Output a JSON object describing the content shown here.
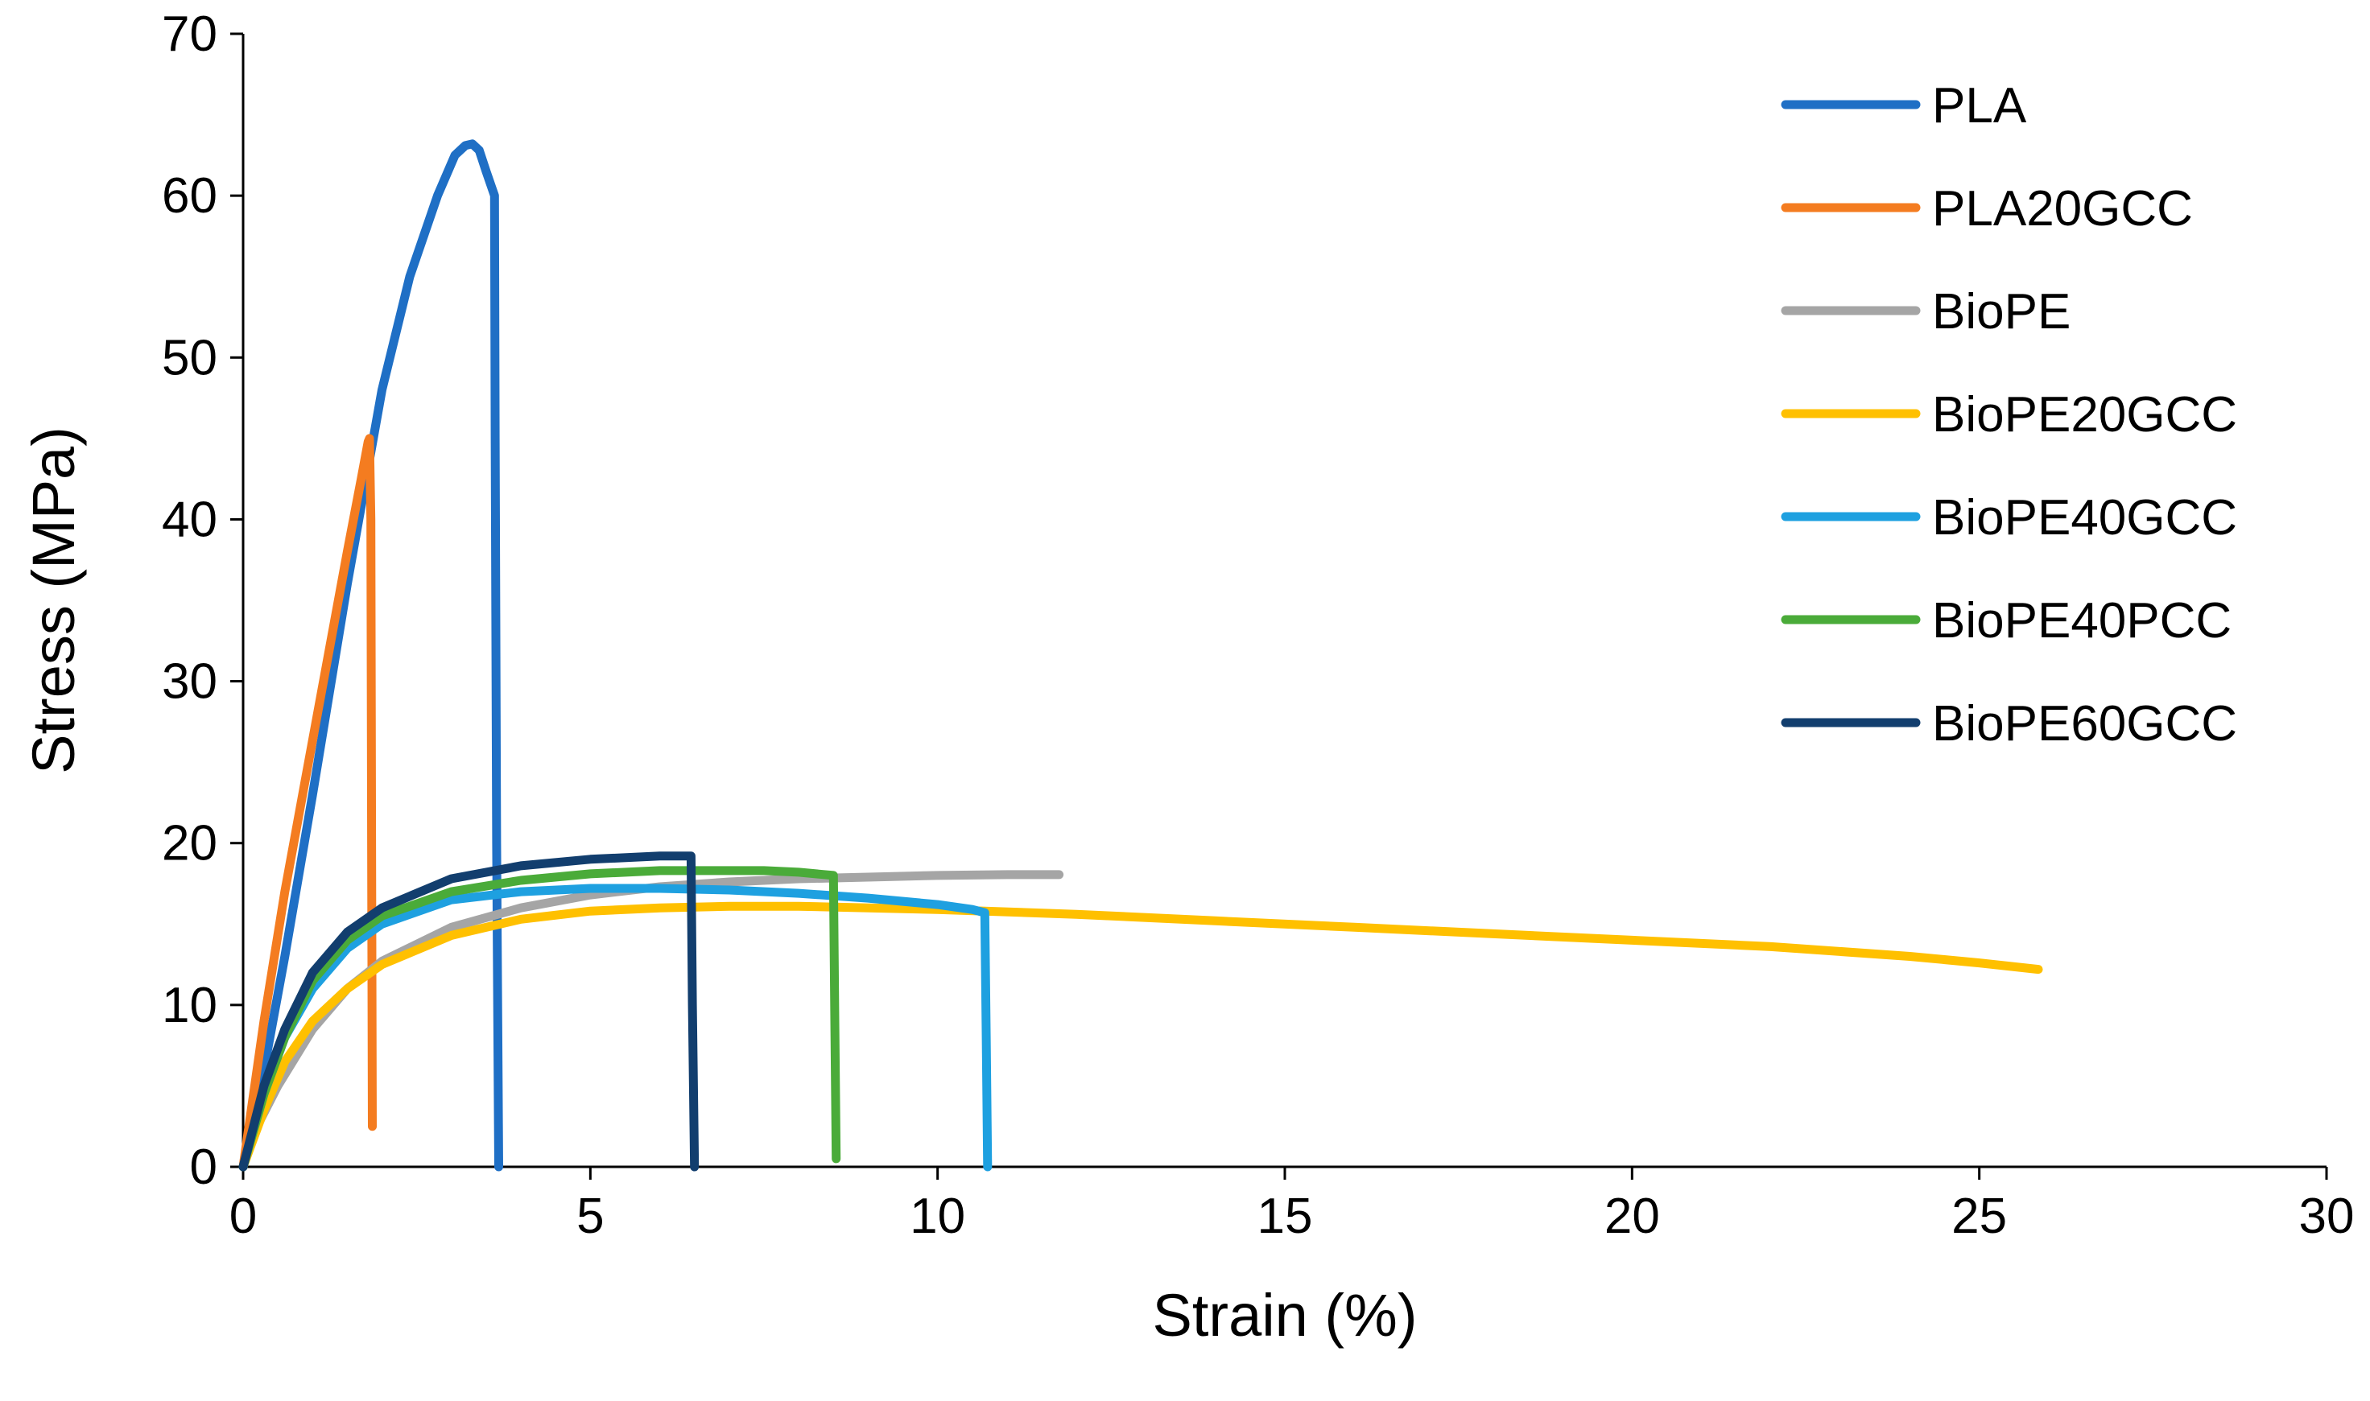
{
  "chart_data": {
    "type": "line",
    "title": "",
    "xlabel": "Strain (%)",
    "ylabel": "Stress (MPa)",
    "xlim": [
      0,
      30
    ],
    "ylim": [
      0,
      70
    ],
    "xticks": [
      0,
      5,
      10,
      15,
      20,
      25,
      30
    ],
    "yticks": [
      0,
      10,
      20,
      30,
      40,
      50,
      60,
      70
    ],
    "grid": false,
    "legend_position": "top-right",
    "series": [
      {
        "name": "PLA",
        "color": "#1f6fc5",
        "x": [
          0,
          0.3,
          0.6,
          1.0,
          1.5,
          2.0,
          2.4,
          2.8,
          3.05,
          3.2,
          3.3,
          3.4,
          3.5,
          3.62,
          3.63,
          3.65,
          3.68
        ],
        "y": [
          0,
          6,
          13,
          23,
          36,
          48,
          55,
          60,
          62.5,
          63.1,
          63.2,
          62.8,
          61.5,
          60,
          45,
          20,
          0
        ]
      },
      {
        "name": "PLA20GCC",
        "color": "#f47c20",
        "x": [
          0,
          0.3,
          0.6,
          0.9,
          1.2,
          1.5,
          1.7,
          1.8,
          1.82,
          1.84,
          1.85,
          1.86
        ],
        "y": [
          0,
          9,
          17,
          24,
          31,
          38,
          42.5,
          44.8,
          45,
          40,
          20,
          2.5
        ]
      },
      {
        "name": "BioPE",
        "color": "#a5a5a5",
        "x": [
          0,
          0.2,
          0.5,
          1.0,
          1.5,
          2.0,
          3.0,
          4.0,
          5.0,
          6.0,
          7.0,
          8.0,
          9.0,
          10.0,
          11.0,
          11.75
        ],
        "y": [
          0,
          2.5,
          5,
          8.5,
          11,
          12.7,
          14.8,
          16,
          16.8,
          17.3,
          17.6,
          17.8,
          17.9,
          18,
          18.05,
          18.05
        ]
      },
      {
        "name": "BioPE20GCC",
        "color": "#ffc000",
        "x": [
          0,
          0.3,
          0.6,
          1.0,
          1.5,
          2.0,
          3.0,
          4.0,
          5.0,
          6.0,
          7.0,
          8.0,
          10.0,
          12.0,
          14.0,
          16.0,
          18.0,
          20.0,
          22.0,
          24.0,
          25.0,
          25.85
        ],
        "y": [
          0,
          3.5,
          6.5,
          9,
          11,
          12.5,
          14.3,
          15.3,
          15.8,
          16,
          16.1,
          16.1,
          15.9,
          15.6,
          15.2,
          14.8,
          14.4,
          14,
          13.6,
          13,
          12.6,
          12.2
        ]
      },
      {
        "name": "BioPE40GCC",
        "color": "#1ea0e0",
        "x": [
          0,
          0.3,
          0.6,
          1.0,
          1.5,
          2.0,
          3.0,
          4.0,
          5.0,
          6.0,
          7.0,
          8.0,
          9.0,
          10.0,
          10.5,
          10.68,
          10.7,
          10.72
        ],
        "y": [
          0,
          4.5,
          8,
          11,
          13.5,
          15,
          16.5,
          17,
          17.2,
          17.2,
          17.1,
          16.9,
          16.6,
          16.2,
          15.9,
          15.7,
          8,
          0
        ]
      },
      {
        "name": "BioPE40PCC",
        "color": "#4aab39",
        "x": [
          0,
          0.3,
          0.6,
          1.0,
          1.5,
          2.0,
          3.0,
          4.0,
          5.0,
          6.0,
          7.0,
          7.5,
          8.0,
          8.5,
          8.52,
          8.54
        ],
        "y": [
          0,
          4.5,
          8,
          11.5,
          14,
          15.5,
          17,
          17.7,
          18.1,
          18.3,
          18.3,
          18.3,
          18.2,
          18,
          9,
          0.5
        ]
      },
      {
        "name": "BioPE60GCC",
        "color": "#123e6e",
        "x": [
          0,
          0.3,
          0.6,
          1.0,
          1.5,
          2.0,
          3.0,
          4.0,
          5.0,
          6.0,
          6.45,
          6.47,
          6.5
        ],
        "y": [
          0,
          5,
          8.5,
          12,
          14.5,
          16,
          17.8,
          18.6,
          19,
          19.2,
          19.2,
          10,
          0
        ]
      }
    ]
  }
}
